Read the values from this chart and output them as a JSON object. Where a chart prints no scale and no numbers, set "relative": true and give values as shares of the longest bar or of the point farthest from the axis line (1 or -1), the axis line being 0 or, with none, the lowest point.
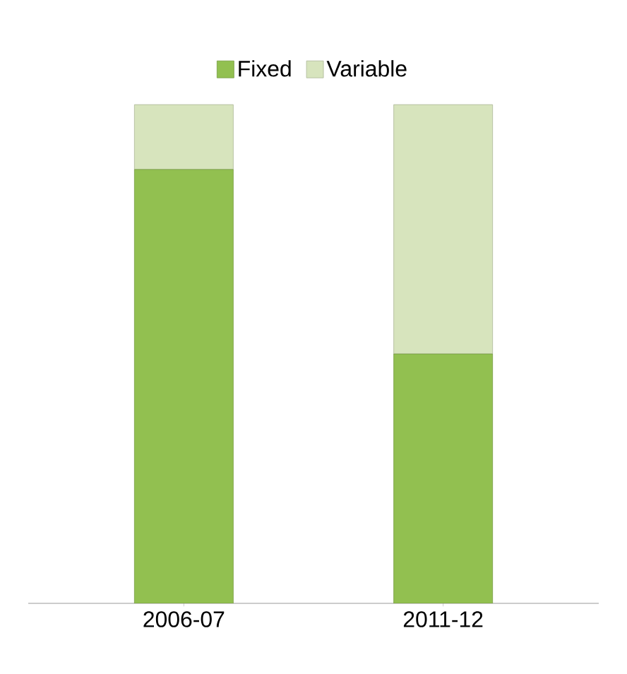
{
  "chart_data": {
    "type": "bar",
    "relative": true,
    "stacked": true,
    "legend": "top",
    "categories": [
      "2006-07",
      "2011-12"
    ],
    "series": [
      {
        "name": "Fixed",
        "color": "#92c050",
        "values": [
          0.87,
          0.5
        ]
      },
      {
        "name": "Variable",
        "color": "#d7e4bd",
        "values": [
          0.13,
          0.5
        ]
      }
    ]
  }
}
